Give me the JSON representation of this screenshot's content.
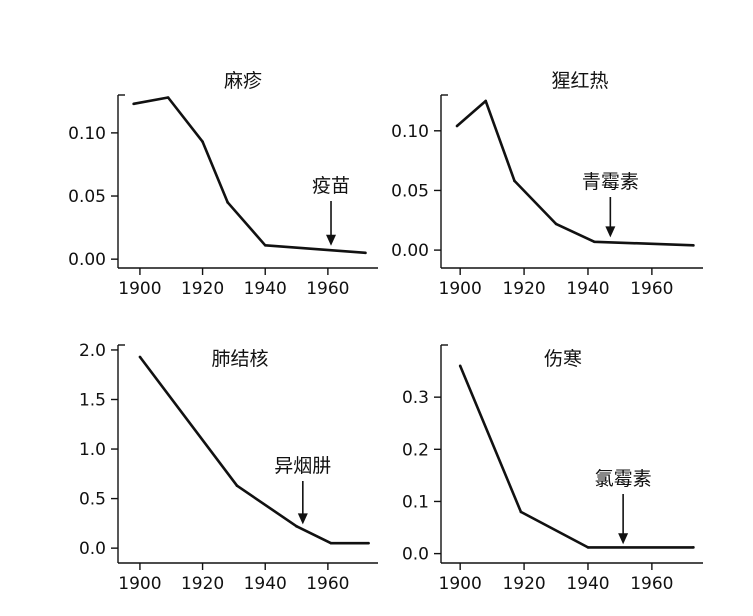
{
  "chart_data": [
    {
      "type": "line",
      "title": "麻疹",
      "x": [
        1898,
        1909,
        1920,
        1928,
        1940,
        1972
      ],
      "y": [
        0.123,
        0.128,
        0.093,
        0.045,
        0.011,
        0.005
      ],
      "xlim": [
        1893,
        1976
      ],
      "ylim": [
        -0.007,
        0.13
      ],
      "xticks": [
        1900,
        1920,
        1940,
        1960
      ],
      "yticks": [
        0.0,
        0.05,
        0.1
      ],
      "ytick_labels": [
        "0.00",
        "0.05",
        "0.10"
      ],
      "annotation": {
        "text": "疫苗",
        "x": 1961,
        "y_text": 0.048,
        "y_tip": 0.009
      }
    },
    {
      "type": "line",
      "title": "猩红热",
      "x": [
        1899,
        1908,
        1917,
        1930,
        1942,
        1973
      ],
      "y": [
        0.104,
        0.125,
        0.058,
        0.022,
        0.007,
        0.004
      ],
      "xlim": [
        1894,
        1976
      ],
      "ylim": [
        -0.015,
        0.13
      ],
      "xticks": [
        1900,
        1920,
        1940,
        1960
      ],
      "yticks": [
        0.0,
        0.05,
        0.1
      ],
      "ytick_labels": [
        "0.00",
        "0.05",
        "0.10"
      ],
      "annotation": {
        "text": "青霉素",
        "x": 1947,
        "y_text": 0.041,
        "y_tip": 0.009
      }
    },
    {
      "type": "line",
      "title": "肺结核",
      "x": [
        1900,
        1931,
        1950,
        1961,
        1973
      ],
      "y": [
        1.93,
        0.63,
        0.22,
        0.05,
        0.05
      ],
      "xlim": [
        1893,
        1976
      ],
      "ylim": [
        -0.15,
        2.05
      ],
      "xticks": [
        1900,
        1920,
        1940,
        1960
      ],
      "yticks": [
        0.0,
        0.5,
        1.0,
        1.5,
        2.0
      ],
      "ytick_labels": [
        "0.0",
        "0.5",
        "1.0",
        "1.5",
        "2.0"
      ],
      "annotation": {
        "text": "异烟肼",
        "x": 1952,
        "y_text": 0.55,
        "y_tip": 0.22
      }
    },
    {
      "type": "line",
      "title": "伤寒",
      "x": [
        1900,
        1919,
        1940,
        1973
      ],
      "y": [
        0.36,
        0.08,
        0.012,
        0.012
      ],
      "xlim": [
        1894,
        1976
      ],
      "ylim": [
        -0.018,
        0.4
      ],
      "xticks": [
        1900,
        1920,
        1940,
        1960
      ],
      "yticks": [
        0.0,
        0.1,
        0.2,
        0.3
      ],
      "ytick_labels": [
        "0.0",
        "0.1",
        "0.2",
        "0.3"
      ],
      "annotation": {
        "text": "氯霉素",
        "x": 1951,
        "y_text": 0.093,
        "y_tip": 0.014
      }
    }
  ]
}
